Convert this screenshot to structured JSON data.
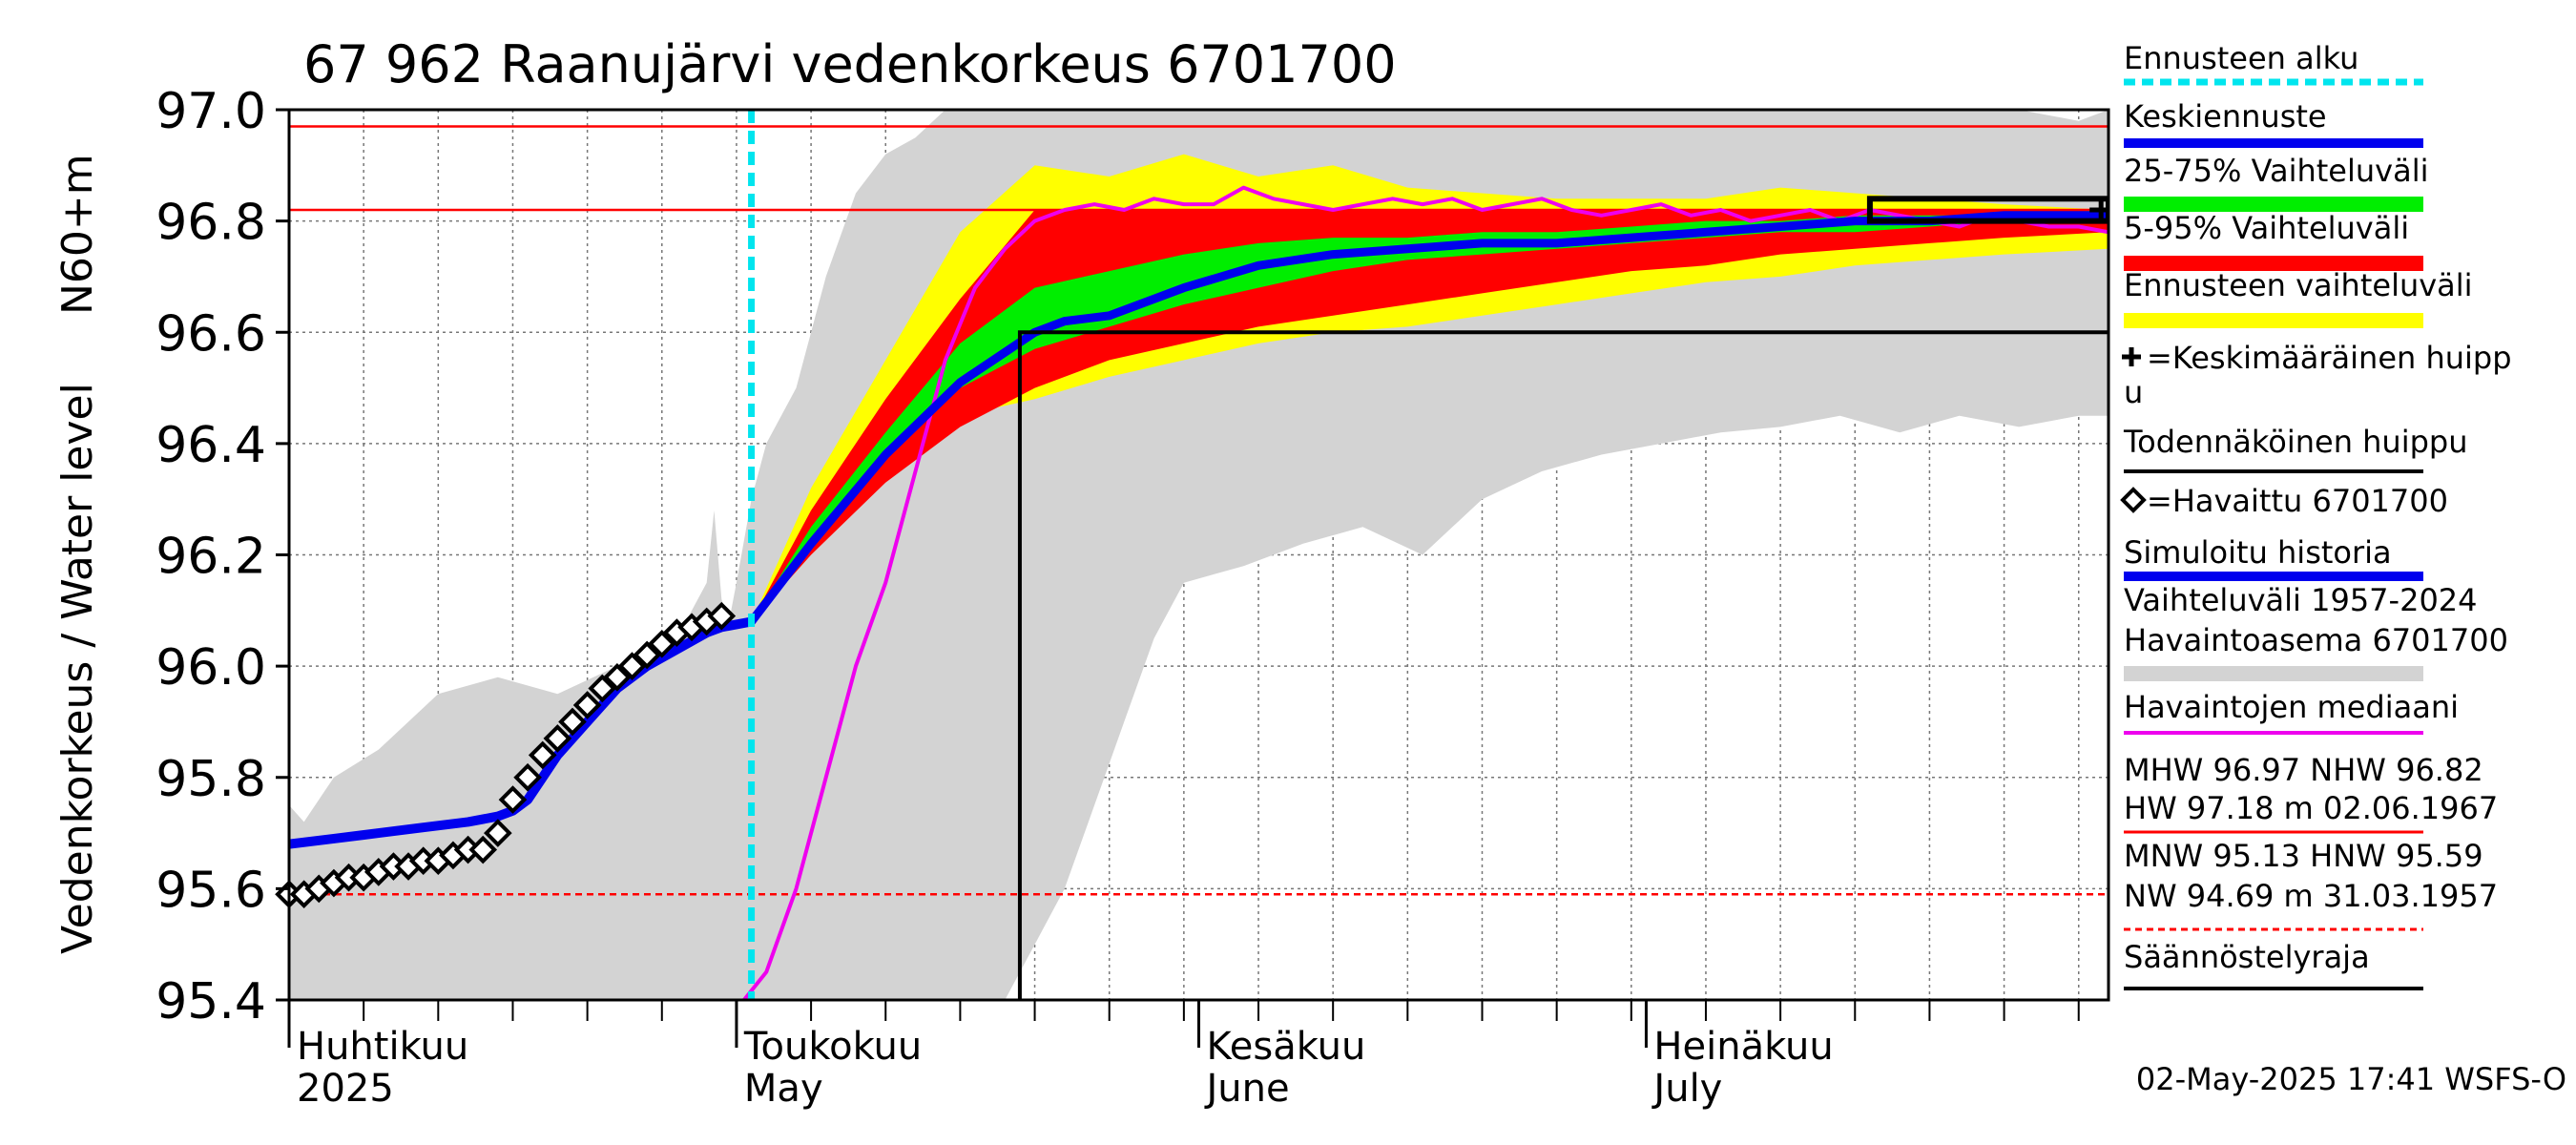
{
  "chart_data": {
    "type": "line",
    "title": "67 962 Raanujärvi vedenkorkeus 6701700",
    "ylabel_main": "Vedenkorkeus / Water level",
    "ylabel_unit": "N60+m",
    "ylim": [
      95.4,
      97.0
    ],
    "yticks": [
      95.4,
      95.6,
      95.8,
      96.0,
      96.2,
      96.4,
      96.6,
      96.8,
      97.0
    ],
    "ytick_labels": [
      "95.4",
      "95.6",
      "95.8",
      "96.0",
      "96.2",
      "96.4",
      "96.6",
      "96.8",
      "97.0"
    ],
    "xlim_days": [
      0,
      122
    ],
    "month_labels": [
      {
        "day": 0,
        "fi": "Huhtikuu",
        "en": "2025"
      },
      {
        "day": 30,
        "fi": "Toukokuu",
        "en": "May"
      },
      {
        "day": 61,
        "fi": "Kesäkuu",
        "en": "June"
      },
      {
        "day": 91,
        "fi": "Heinäkuu",
        "en": "July"
      }
    ],
    "forecast_start_day": 31,
    "reference_lines": {
      "MHW": 96.97,
      "NHW": 96.82,
      "HNW": 95.59
    },
    "probable_peak": {
      "start_day": 49,
      "level": 96.6
    },
    "mean_peak": {
      "day": 121.5,
      "level": 96.82
    },
    "peak_box": {
      "x_days": [
        106,
        122
      ],
      "y_levels": [
        96.8,
        96.84
      ]
    },
    "historical_range": {
      "x": [
        0,
        1,
        3,
        6,
        10,
        14,
        18,
        22,
        26,
        28,
        28.5,
        29,
        29.5,
        30,
        31,
        32,
        34,
        36,
        38,
        40,
        42,
        44,
        46,
        48,
        50,
        52,
        54,
        56,
        58,
        60,
        64,
        68,
        72,
        76,
        80,
        84,
        88,
        92,
        96,
        100,
        104,
        108,
        112,
        116,
        120,
        122
      ],
      "low": [
        95.4,
        95.4,
        95.4,
        95.4,
        95.4,
        95.4,
        95.4,
        95.4,
        95.4,
        95.4,
        95.4,
        95.4,
        95.4,
        95.4,
        95.4,
        95.4,
        95.4,
        95.4,
        95.4,
        95.4,
        95.4,
        95.4,
        95.4,
        95.4,
        95.5,
        95.6,
        95.75,
        95.9,
        96.05,
        96.15,
        96.18,
        96.22,
        96.25,
        96.2,
        96.3,
        96.35,
        96.38,
        96.4,
        96.42,
        96.43,
        96.45,
        96.42,
        96.45,
        96.43,
        96.45,
        96.45
      ],
      "high": [
        95.75,
        95.72,
        95.8,
        95.85,
        95.95,
        95.98,
        95.95,
        96.0,
        96.05,
        96.15,
        96.28,
        96.12,
        96.08,
        96.15,
        96.3,
        96.4,
        96.5,
        96.7,
        96.85,
        96.92,
        96.95,
        97.0,
        97.0,
        97.0,
        97.0,
        97.0,
        97.0,
        97.0,
        97.0,
        97.0,
        97.0,
        97.0,
        97.0,
        97.0,
        97.0,
        97.0,
        97.0,
        97.0,
        97.0,
        97.0,
        97.0,
        97.0,
        97.0,
        97.0,
        96.98,
        97.0
      ]
    },
    "forecast_range": {
      "x": [
        31,
        35,
        40,
        45,
        50,
        55,
        60,
        65,
        70,
        75,
        80,
        85,
        90,
        95,
        100,
        105,
        110,
        115,
        122
      ],
      "low": [
        96.08,
        96.22,
        96.38,
        96.45,
        96.48,
        96.52,
        96.55,
        96.58,
        96.6,
        96.61,
        96.63,
        96.65,
        96.67,
        96.69,
        96.7,
        96.72,
        96.73,
        96.74,
        96.75
      ],
      "high": [
        96.08,
        96.32,
        96.55,
        96.78,
        96.9,
        96.88,
        96.92,
        96.88,
        96.9,
        96.86,
        96.85,
        96.84,
        96.84,
        96.84,
        96.86,
        96.85,
        96.84,
        96.83,
        96.82
      ]
    },
    "p5_95": {
      "x": [
        31,
        35,
        40,
        45,
        50,
        55,
        60,
        65,
        70,
        75,
        80,
        85,
        90,
        95,
        100,
        105,
        110,
        115,
        122
      ],
      "low": [
        96.08,
        96.2,
        96.33,
        96.43,
        96.5,
        96.55,
        96.58,
        96.61,
        96.63,
        96.65,
        96.67,
        96.69,
        96.71,
        96.72,
        96.74,
        96.75,
        96.76,
        96.77,
        96.78
      ],
      "high": [
        96.08,
        96.28,
        96.48,
        96.66,
        96.82,
        96.82,
        96.82,
        96.82,
        96.82,
        96.82,
        96.82,
        96.82,
        96.82,
        96.82,
        96.82,
        96.82,
        96.82,
        96.82,
        96.82
      ]
    },
    "p25_75": {
      "x": [
        31,
        35,
        40,
        45,
        50,
        55,
        60,
        65,
        70,
        75,
        80,
        85,
        90,
        95,
        100,
        105,
        110,
        115,
        122
      ],
      "low": [
        96.08,
        96.22,
        96.37,
        96.5,
        96.57,
        96.61,
        96.65,
        96.68,
        96.71,
        96.73,
        96.74,
        96.75,
        96.76,
        96.77,
        96.78,
        96.78,
        96.79,
        96.8,
        96.8
      ],
      "high": [
        96.08,
        96.25,
        96.42,
        96.58,
        96.68,
        96.71,
        96.74,
        96.76,
        96.77,
        96.77,
        96.78,
        96.78,
        96.79,
        96.8,
        96.8,
        96.81,
        96.81,
        96.81,
        96.82
      ]
    },
    "mean_forecast": {
      "x": [
        31,
        35,
        40,
        45,
        50,
        52,
        55,
        60,
        65,
        70,
        75,
        80,
        85,
        90,
        95,
        100,
        105,
        110,
        115,
        122
      ],
      "y": [
        96.08,
        96.22,
        96.38,
        96.51,
        96.6,
        96.62,
        96.63,
        96.68,
        96.72,
        96.74,
        96.75,
        96.76,
        96.76,
        96.77,
        96.78,
        96.79,
        96.8,
        96.8,
        96.81,
        96.81
      ]
    },
    "simulated_history": {
      "x": [
        0,
        3,
        6,
        9,
        12,
        14,
        15,
        16,
        17,
        18,
        20,
        22,
        24,
        26,
        28,
        29,
        30,
        31
      ],
      "y": [
        95.68,
        95.69,
        95.7,
        95.71,
        95.72,
        95.73,
        95.74,
        95.76,
        95.8,
        95.84,
        95.9,
        95.96,
        96.0,
        96.03,
        96.06,
        96.07,
        96.075,
        96.08
      ]
    },
    "median_observed": {
      "x": [
        30.5,
        32,
        34,
        36,
        38,
        40,
        42,
        44,
        46,
        48,
        50,
        52,
        54,
        56,
        58,
        60,
        62,
        64,
        66,
        68,
        70,
        72,
        74,
        76,
        78,
        80,
        82,
        84,
        86,
        88,
        90,
        92,
        94,
        96,
        98,
        100,
        102,
        104,
        106,
        108,
        110,
        112,
        114,
        116,
        118,
        120,
        122
      ],
      "y": [
        95.4,
        95.45,
        95.6,
        95.8,
        96.0,
        96.15,
        96.35,
        96.55,
        96.68,
        96.75,
        96.8,
        96.82,
        96.83,
        96.82,
        96.84,
        96.83,
        96.83,
        96.86,
        96.84,
        96.83,
        96.82,
        96.83,
        96.84,
        96.83,
        96.84,
        96.82,
        96.83,
        96.84,
        96.82,
        96.81,
        96.82,
        96.83,
        96.81,
        96.82,
        96.8,
        96.81,
        96.82,
        96.8,
        96.82,
        96.81,
        96.8,
        96.79,
        96.81,
        96.8,
        96.79,
        96.79,
        96.78
      ]
    },
    "observed": {
      "x": [
        0,
        1,
        2,
        3,
        4,
        5,
        6,
        7,
        8,
        9,
        10,
        11,
        12,
        13,
        14,
        15,
        16,
        17,
        18,
        19,
        20,
        21,
        22,
        23,
        24,
        25,
        26,
        27,
        28,
        29
      ],
      "y": [
        95.59,
        95.59,
        95.6,
        95.61,
        95.62,
        95.62,
        95.63,
        95.64,
        95.64,
        95.65,
        95.65,
        95.66,
        95.67,
        95.67,
        95.7,
        95.76,
        95.8,
        95.84,
        95.87,
        95.9,
        95.93,
        95.96,
        95.98,
        96.0,
        96.02,
        96.04,
        96.06,
        96.07,
        96.08,
        96.09
      ]
    },
    "legend": [
      {
        "label": "Ennusteen alku",
        "symbol": "dash",
        "color": "#00e5ee"
      },
      {
        "label": "Keskiennuste",
        "symbol": "line",
        "color": "#0000ee"
      },
      {
        "label": "25-75% Vaihteluväli",
        "symbol": "band",
        "color": "#00ee00"
      },
      {
        "label": "5-95% Vaihteluväli",
        "symbol": "band",
        "color": "#ff0000"
      },
      {
        "label": "Ennusteen vaihteluväli",
        "symbol": "band",
        "color": "#ffff00"
      },
      {
        "label": "=Keskimääräinen huipp",
        "label2": "u",
        "symbol": "cross",
        "color": "#000000"
      },
      {
        "label": "Todennäköinen huippu",
        "symbol": "line",
        "color": "#000000"
      },
      {
        "label": "=Havaittu 6701700",
        "symbol": "diamond",
        "color": "#000000"
      },
      {
        "label": "Simuloitu historia",
        "symbol": "line",
        "color": "#0000ee"
      },
      {
        "label": "Vaihteluväli 1957-2024",
        "label2": " Havaintoasema 6701700",
        "symbol": "band",
        "color": "#d3d3d3"
      },
      {
        "label": "Havaintojen mediaani",
        "symbol": "line",
        "color": "#ee00ee"
      },
      {
        "label": "MHW  96.97 NHW  96.82",
        "label2": "HW  97.18 m 02.06.1967",
        "symbol": "line",
        "color": "#ff0000"
      },
      {
        "label": "MNW  95.13 HNW  95.59",
        "label2": "NW  94.69 m 31.03.1957",
        "symbol": "dashline",
        "color": "#ff0000"
      },
      {
        "label": "Säännöstelyraja",
        "symbol": "line",
        "color": "#000000"
      }
    ],
    "timestamp": "02-May-2025 17:41 WSFS-O"
  }
}
